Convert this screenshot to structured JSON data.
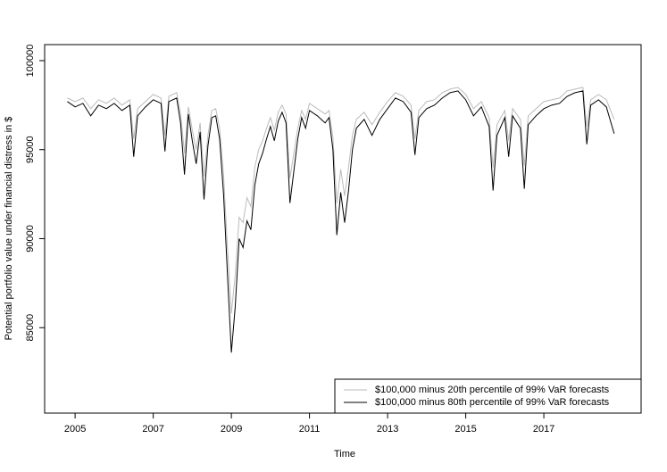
{
  "chart_data": {
    "type": "line",
    "xlabel": "Time",
    "ylabel": "Potential portfolio value under financial distress in $",
    "x": [
      2004.8,
      2005.0,
      2005.2,
      2005.4,
      2005.6,
      2005.8,
      2006.0,
      2006.2,
      2006.4,
      2006.5,
      2006.6,
      2006.8,
      2007.0,
      2007.2,
      2007.3,
      2007.4,
      2007.6,
      2007.7,
      2007.8,
      2007.9,
      2008.0,
      2008.1,
      2008.2,
      2008.3,
      2008.4,
      2008.5,
      2008.6,
      2008.7,
      2008.8,
      2008.9,
      2009.0,
      2009.1,
      2009.2,
      2009.3,
      2009.4,
      2009.5,
      2009.6,
      2009.7,
      2009.8,
      2009.9,
      2010.0,
      2010.1,
      2010.2,
      2010.3,
      2010.4,
      2010.5,
      2010.6,
      2010.7,
      2010.8,
      2010.9,
      2011.0,
      2011.2,
      2011.4,
      2011.5,
      2011.6,
      2011.7,
      2011.8,
      2011.9,
      2012.0,
      2012.1,
      2012.2,
      2012.4,
      2012.6,
      2012.8,
      2013.0,
      2013.2,
      2013.4,
      2013.6,
      2013.7,
      2013.8,
      2014.0,
      2014.2,
      2014.4,
      2014.6,
      2014.8,
      2015.0,
      2015.2,
      2015.4,
      2015.6,
      2015.7,
      2015.8,
      2016.0,
      2016.1,
      2016.2,
      2016.4,
      2016.5,
      2016.6,
      2016.8,
      2017.0,
      2017.2,
      2017.4,
      2017.6,
      2017.8,
      2018.0,
      2018.1,
      2018.2,
      2018.4,
      2018.6,
      2018.8
    ],
    "series": [
      {
        "name": "$100,000 minus 20th percentile of 99% VaR forecasts",
        "color": "#bbbbbb",
        "values": [
          97900,
          97700,
          97900,
          97300,
          97800,
          97600,
          97900,
          97500,
          97800,
          95600,
          97300,
          97700,
          98100,
          97900,
          95800,
          98000,
          98200,
          97000,
          94800,
          97400,
          96100,
          95000,
          96500,
          93500,
          95800,
          97200,
          97300,
          96200,
          93600,
          89500,
          85800,
          88000,
          91200,
          90900,
          92300,
          91800,
          94000,
          95000,
          95500,
          96200,
          96800,
          96100,
          97100,
          97500,
          97000,
          93400,
          94800,
          96200,
          97200,
          96700,
          97600,
          97300,
          97000,
          97200,
          95700,
          92000,
          93900,
          92400,
          94000,
          95800,
          96700,
          97100,
          96400,
          97100,
          97700,
          98200,
          98000,
          97500,
          95600,
          97200,
          97700,
          97800,
          98200,
          98400,
          98500,
          98100,
          97300,
          97700,
          96800,
          94000,
          96400,
          97200,
          95500,
          97300,
          96700,
          94100,
          96900,
          97300,
          97700,
          97800,
          97900,
          98300,
          98400,
          98500,
          96300,
          97800,
          98100,
          97800,
          96700
        ]
      },
      {
        "name": "$100,000 minus 80th percentile of 99% VaR forecasts",
        "color": "#000000",
        "values": [
          97700,
          97400,
          97600,
          96900,
          97500,
          97300,
          97600,
          97200,
          97500,
          94600,
          96900,
          97400,
          97800,
          97600,
          94900,
          97700,
          97900,
          96500,
          93600,
          97000,
          95500,
          94200,
          96000,
          92200,
          95200,
          96800,
          96900,
          95600,
          92500,
          88000,
          83600,
          86200,
          90000,
          89500,
          91000,
          90500,
          93000,
          94200,
          94800,
          95600,
          96300,
          95500,
          96600,
          97100,
          96500,
          92000,
          93800,
          95600,
          96800,
          96200,
          97200,
          96900,
          96500,
          96800,
          95000,
          90200,
          92600,
          90900,
          92700,
          95000,
          96200,
          96700,
          95800,
          96700,
          97300,
          97900,
          97700,
          97100,
          94700,
          96800,
          97300,
          97500,
          97900,
          98200,
          98300,
          97800,
          96900,
          97400,
          96300,
          92700,
          95800,
          96800,
          94600,
          96900,
          96200,
          92800,
          96400,
          96900,
          97300,
          97500,
          97600,
          98000,
          98200,
          98300,
          95300,
          97500,
          97800,
          97400,
          95900
        ]
      }
    ],
    "xlim": [
      2004.22,
      2019.49
    ],
    "xticks": [
      2005,
      2007,
      2009,
      2011,
      2013,
      2015,
      2017
    ],
    "ylim": [
      80200,
      100900
    ],
    "yticks": [
      85000,
      90000,
      95000,
      100000
    ],
    "legend": "bottomright"
  }
}
